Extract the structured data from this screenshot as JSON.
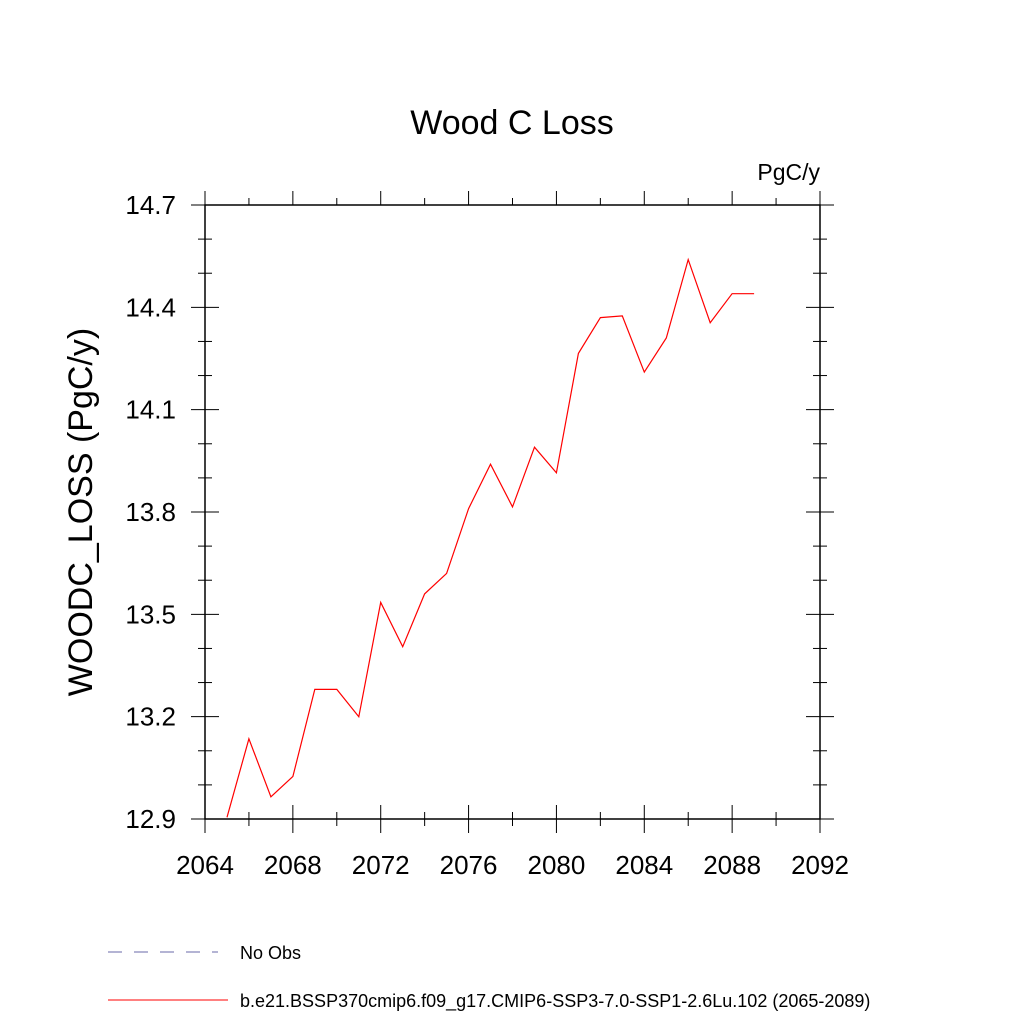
{
  "chart_data": {
    "type": "line",
    "title": "Wood C Loss",
    "units": "PgC/y",
    "xlabel": "",
    "ylabel": "WOODC_LOSS  (PgC/y)",
    "xlim": [
      2064,
      2092
    ],
    "ylim": [
      12.9,
      14.7
    ],
    "xticks": [
      "2064",
      "2068",
      "2072",
      "2076",
      "2080",
      "2084",
      "2088",
      "2092"
    ],
    "yticks": [
      "12.9",
      "13.2",
      "13.5",
      "13.8",
      "14.1",
      "14.4",
      "14.7"
    ],
    "series": [
      {
        "name": "b.e21.BSSP370cmip6.f09_g17.CMIP6-SSP3-7.0-SSP1-2.6Lu.102 (2065-2089)",
        "color": "#ff0000",
        "style": "solid",
        "x": [
          2065,
          2066,
          2067,
          2068,
          2069,
          2070,
          2071,
          2072,
          2073,
          2074,
          2075,
          2076,
          2077,
          2078,
          2079,
          2080,
          2081,
          2082,
          2083,
          2084,
          2085,
          2086,
          2087,
          2088,
          2089
        ],
        "y": [
          12.905,
          13.135,
          12.965,
          13.025,
          13.28,
          13.28,
          13.2,
          13.535,
          13.405,
          13.56,
          13.62,
          13.81,
          13.94,
          13.815,
          13.99,
          13.915,
          14.265,
          14.37,
          14.375,
          14.21,
          14.31,
          14.54,
          14.355,
          14.44,
          14.44
        ]
      }
    ],
    "legend": [
      {
        "label": "No Obs",
        "color": "#6a6aa8",
        "style": "dashed"
      },
      {
        "label": "b.e21.BSSP370cmip6.f09_g17.CMIP6-SSP3-7.0-SSP1-2.6Lu.102 (2065-2089)",
        "color": "#ff0000",
        "style": "solid"
      }
    ]
  }
}
